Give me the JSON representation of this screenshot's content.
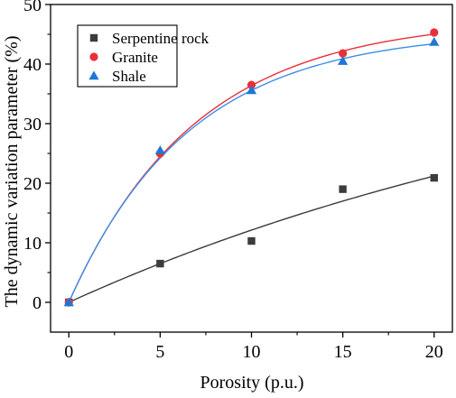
{
  "chart_data": {
    "type": "scatter",
    "xlabel": "Porosity (p.u.)",
    "ylabel": "The dynamic variation parameter (%)",
    "xlim": [
      -1,
      21
    ],
    "ylim": [
      -5,
      50
    ],
    "xticks": [
      0,
      5,
      10,
      15,
      20
    ],
    "yticks": [
      0,
      10,
      20,
      30,
      40,
      50
    ],
    "grid": false,
    "legend_placement": "top-left",
    "series": [
      {
        "name": "Serpentine rock",
        "marker": "square",
        "color": "#3c3c3c",
        "fit_color": "#3c3c3c",
        "x": [
          0,
          5,
          10,
          15,
          20
        ],
        "y": [
          0,
          6.5,
          10.3,
          19.0,
          20.9
        ],
        "fit": {
          "form": "a*(1-exp(-x/t))",
          "a": 48.2,
          "t": 34.5
        }
      },
      {
        "name": "Granite",
        "marker": "circle",
        "color": "#e8303a",
        "fit_color": "#e8303a",
        "x": [
          0,
          5,
          10,
          15,
          20
        ],
        "y": [
          0,
          25.0,
          36.5,
          41.8,
          45.3
        ],
        "fit": {
          "form": "a*(1-exp(-x/t))",
          "a": 47.7,
          "t": 6.95
        }
      },
      {
        "name": "Shale",
        "marker": "triangle",
        "color": "#1f77d6",
        "fit_color": "#3a8ee8",
        "x": [
          0,
          5,
          10,
          15,
          20
        ],
        "y": [
          0,
          25.5,
          35.6,
          40.5,
          43.7
        ],
        "fit": {
          "form": "a*(1-exp(-x/t))",
          "a": 45.6,
          "t": 6.6
        }
      }
    ]
  }
}
